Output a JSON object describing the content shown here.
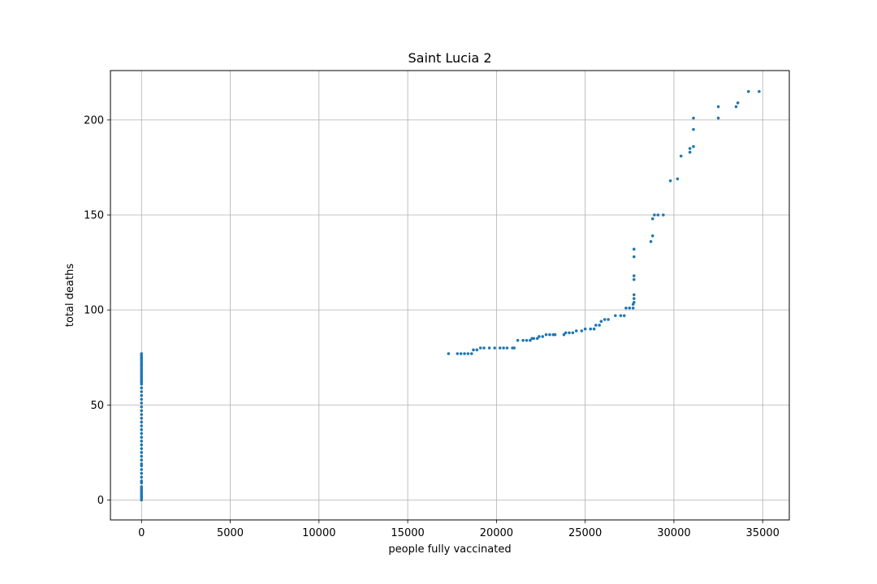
{
  "chart_data": {
    "type": "scatter",
    "title": "Saint Lucia 2",
    "xlabel": "people fully vaccinated",
    "ylabel": "total deaths",
    "xlim": [
      -1750,
      36500
    ],
    "ylim": [
      -10.5,
      226
    ],
    "xticks": [
      0,
      5000,
      10000,
      15000,
      20000,
      25000,
      30000,
      35000
    ],
    "yticks": [
      0,
      50,
      100,
      150,
      200
    ],
    "grid": true,
    "point_color": "#1f77b4",
    "series": [
      {
        "points": [
          [
            0,
            0
          ],
          [
            0,
            1
          ],
          [
            0,
            2
          ],
          [
            0,
            3
          ],
          [
            0,
            4
          ],
          [
            0,
            5
          ],
          [
            0,
            6
          ],
          [
            0,
            7
          ],
          [
            0,
            9
          ],
          [
            0,
            10
          ],
          [
            0,
            12
          ],
          [
            0,
            14
          ],
          [
            0,
            16
          ],
          [
            0,
            18
          ],
          [
            0,
            19
          ],
          [
            0,
            21
          ],
          [
            0,
            23
          ],
          [
            0,
            25
          ],
          [
            0,
            27
          ],
          [
            0,
            29
          ],
          [
            0,
            31
          ],
          [
            0,
            33
          ],
          [
            0,
            35
          ],
          [
            0,
            37
          ],
          [
            0,
            39
          ],
          [
            0,
            41
          ],
          [
            0,
            43
          ],
          [
            0,
            45
          ],
          [
            0,
            47
          ],
          [
            0,
            49
          ],
          [
            0,
            51
          ],
          [
            0,
            53
          ],
          [
            0,
            55
          ],
          [
            0,
            57
          ],
          [
            0,
            59
          ],
          [
            0,
            61
          ],
          [
            0,
            62
          ],
          [
            0,
            63
          ],
          [
            0,
            64
          ],
          [
            0,
            65
          ],
          [
            0,
            66
          ],
          [
            0,
            67
          ],
          [
            0,
            68
          ],
          [
            0,
            69
          ],
          [
            0,
            70
          ],
          [
            0,
            71
          ],
          [
            0,
            72
          ],
          [
            0,
            73
          ],
          [
            0,
            74
          ],
          [
            0,
            75
          ],
          [
            0,
            76
          ],
          [
            0,
            77
          ],
          [
            17300,
            77
          ],
          [
            17800,
            77
          ],
          [
            18000,
            77
          ],
          [
            18200,
            77
          ],
          [
            18400,
            77
          ],
          [
            18600,
            77
          ],
          [
            18700,
            79
          ],
          [
            18900,
            79
          ],
          [
            19100,
            80
          ],
          [
            19300,
            80
          ],
          [
            19600,
            80
          ],
          [
            19900,
            80
          ],
          [
            20200,
            80
          ],
          [
            20400,
            80
          ],
          [
            20600,
            80
          ],
          [
            20900,
            80
          ],
          [
            21000,
            80
          ],
          [
            21200,
            84
          ],
          [
            21500,
            84
          ],
          [
            21700,
            84
          ],
          [
            21900,
            84
          ],
          [
            22000,
            85
          ],
          [
            22100,
            85
          ],
          [
            22300,
            85
          ],
          [
            22400,
            86
          ],
          [
            22600,
            86
          ],
          [
            22800,
            87
          ],
          [
            23000,
            87
          ],
          [
            23200,
            87
          ],
          [
            23300,
            87
          ],
          [
            23800,
            87
          ],
          [
            23900,
            88
          ],
          [
            24100,
            88
          ],
          [
            24300,
            88
          ],
          [
            24500,
            89
          ],
          [
            24800,
            89
          ],
          [
            25000,
            90
          ],
          [
            25300,
            90
          ],
          [
            25500,
            90
          ],
          [
            25600,
            92
          ],
          [
            25800,
            92
          ],
          [
            25900,
            94
          ],
          [
            26100,
            95
          ],
          [
            26300,
            95
          ],
          [
            26700,
            97
          ],
          [
            27000,
            97
          ],
          [
            27200,
            97
          ],
          [
            27300,
            101
          ],
          [
            27500,
            101
          ],
          [
            27700,
            101
          ],
          [
            27700,
            103
          ],
          [
            27750,
            104
          ],
          [
            27750,
            106
          ],
          [
            27750,
            108
          ],
          [
            27750,
            116
          ],
          [
            27750,
            118
          ],
          [
            27750,
            128
          ],
          [
            27750,
            132
          ],
          [
            28700,
            136
          ],
          [
            28800,
            139
          ],
          [
            28800,
            148
          ],
          [
            28900,
            150
          ],
          [
            29100,
            150
          ],
          [
            29400,
            150
          ],
          [
            29800,
            168
          ],
          [
            30200,
            169
          ],
          [
            30400,
            181
          ],
          [
            30900,
            183
          ],
          [
            30900,
            185
          ],
          [
            31100,
            186
          ],
          [
            31100,
            195
          ],
          [
            31100,
            201
          ],
          [
            32500,
            201
          ],
          [
            32500,
            207
          ],
          [
            33500,
            207
          ],
          [
            33600,
            209
          ],
          [
            34200,
            215
          ],
          [
            34800,
            215
          ]
        ]
      }
    ]
  }
}
